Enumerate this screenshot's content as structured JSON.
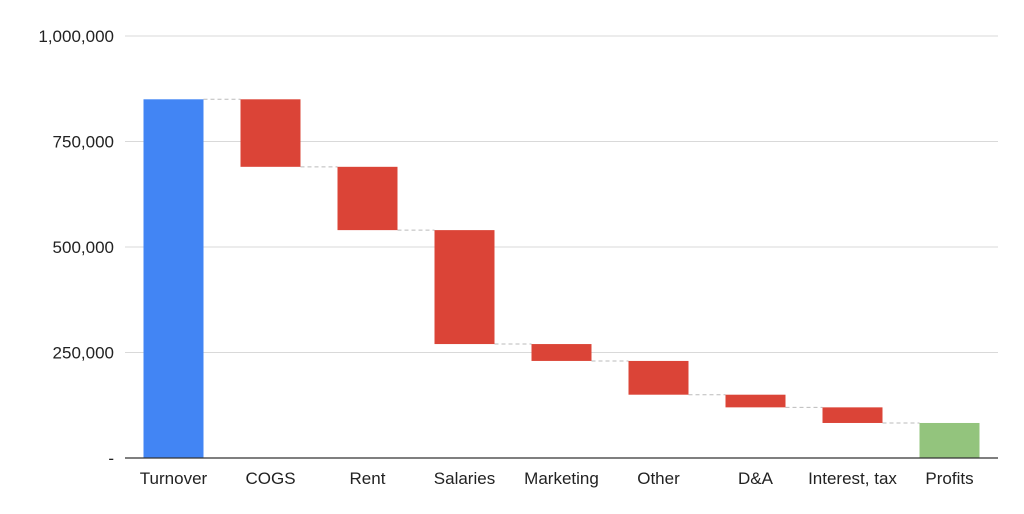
{
  "chart_data": {
    "type": "waterfall",
    "title": "",
    "xlabel": "",
    "ylabel": "",
    "categories": [
      "Turnover",
      "COGS",
      "Rent",
      "Salaries",
      "Marketing",
      "Other",
      "D&A",
      "Interest, tax",
      "Profits"
    ],
    "steps": [
      {
        "label": "Turnover",
        "kind": "total",
        "value": 850000
      },
      {
        "label": "COGS",
        "kind": "decrease",
        "value": 160000
      },
      {
        "label": "Rent",
        "kind": "decrease",
        "value": 150000
      },
      {
        "label": "Salaries",
        "kind": "decrease",
        "value": 270000
      },
      {
        "label": "Marketing",
        "kind": "decrease",
        "value": 40000
      },
      {
        "label": "Other",
        "kind": "decrease",
        "value": 80000
      },
      {
        "label": "D&A",
        "kind": "decrease",
        "value": 30000
      },
      {
        "label": "Interest, tax",
        "kind": "decrease",
        "value": 37000
      },
      {
        "label": "Profits",
        "kind": "total",
        "value": 83000
      }
    ],
    "ylim": [
      0,
      1000000
    ],
    "yticks": [
      0,
      250000,
      500000,
      750000,
      1000000
    ],
    "ytick_labels": [
      "-",
      "250,000",
      "500,000",
      "750,000",
      "1,000,000"
    ],
    "grid": true,
    "legend": "none",
    "colors": {
      "start_total": "#4285f4",
      "decrease": "#db4437",
      "end_total": "#93c47d",
      "grid": "#d9d9d9",
      "axis": "#333333",
      "connector": "#bbbbbb"
    }
  }
}
